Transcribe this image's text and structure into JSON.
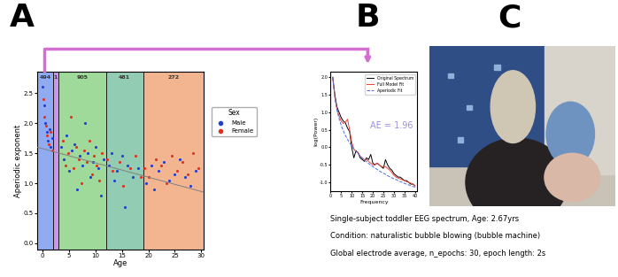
{
  "panel_labels": [
    "A",
    "B",
    "C"
  ],
  "chart_data": [
    {
      "type": "scatter",
      "label": "A",
      "x_label": "Age",
      "y_label": "Aperiodic exponent",
      "xlim": [
        -1,
        30.5
      ],
      "ylim": [
        -0.1,
        2.85
      ],
      "xticks": [
        0,
        5,
        10,
        15,
        20,
        25,
        30
      ],
      "yticks": [
        {
          "value": 0,
          "label": "0.0"
        },
        {
          "value": 0.5,
          "label": "0.5"
        },
        {
          "value": 1.0,
          "label": "1.0"
        },
        {
          "value": 1.5,
          "label": "1.5"
        },
        {
          "value": 2.0,
          "label": "2.0"
        },
        {
          "value": 2.5,
          "label": "2.5"
        }
      ],
      "legend": "right",
      "legend_title": "Sex",
      "bands": [
        {
          "x0": -1,
          "x1": 2,
          "color": "#7d9cf0",
          "label": "494"
        },
        {
          "x0": 2,
          "x1": 3,
          "color": "#c184e8",
          "label": "1"
        },
        {
          "x0": 3,
          "x1": 12,
          "color": "#8fd48a",
          "label": "905"
        },
        {
          "x0": 12,
          "x1": 19,
          "color": "#7fc4a6",
          "label": "481"
        },
        {
          "x0": 19,
          "x1": 30.5,
          "color": "#f0a87c",
          "label": "272"
        }
      ],
      "trend": {
        "x": [
          -1,
          30.5
        ],
        "values": [
          1.6,
          0.85
        ],
        "color": "#808080"
      },
      "series": [
        {
          "name": "Male",
          "color": "#1f3fd6",
          "marker": "circle",
          "x": [
            0.1,
            0.3,
            0.5,
            0.8,
            1.0,
            1.3,
            1.6,
            1.9,
            3.5,
            4,
            4.5,
            5,
            5.5,
            6,
            6.5,
            7,
            7.5,
            8,
            8.5,
            9,
            9.5,
            10,
            10.5,
            11,
            11.5,
            12.5,
            13,
            13.5,
            14,
            15,
            15.5,
            16,
            17,
            18,
            19.5,
            20.5,
            21,
            22,
            23,
            24,
            25,
            26,
            27,
            28,
            29
          ],
          "values": [
            2.6,
            2.3,
            2.0,
            1.85,
            1.7,
            1.9,
            1.6,
            1.75,
            1.6,
            1.4,
            1.8,
            1.2,
            1.55,
            1.65,
            0.9,
            1.45,
            1.3,
            2.0,
            1.5,
            1.1,
            1.35,
            1.6,
            1.25,
            0.8,
            1.4,
            1.3,
            1.5,
            1.05,
            1.2,
            1.45,
            0.6,
            1.3,
            1.1,
            1.25,
            1.0,
            1.3,
            0.9,
            1.2,
            1.35,
            1.05,
            1.15,
            1.4,
            1.1,
            0.95,
            1.2
          ]
        },
        {
          "name": "Female",
          "color": "#e0321e",
          "marker": "circle",
          "x": [
            0.2,
            0.4,
            0.7,
            0.9,
            1.2,
            1.5,
            1.8,
            3.8,
            4.3,
            4.8,
            5.3,
            5.8,
            6.3,
            6.8,
            7.3,
            7.8,
            8.3,
            8.8,
            9.3,
            9.8,
            10.3,
            10.8,
            11.3,
            12.3,
            13.2,
            14.5,
            15.2,
            16.5,
            17.5,
            18.5,
            19.2,
            20,
            21.5,
            22.5,
            23.5,
            24.5,
            25.5,
            26.5,
            27.5,
            28.5,
            29.5
          ],
          "values": [
            2.4,
            2.1,
            1.95,
            1.8,
            1.65,
            1.85,
            1.55,
            1.7,
            1.3,
            1.5,
            2.1,
            1.25,
            1.6,
            1.4,
            1.0,
            1.55,
            1.35,
            1.7,
            1.15,
            1.45,
            1.3,
            1.05,
            1.5,
            1.4,
            1.2,
            1.35,
            0.95,
            1.25,
            1.45,
            1.1,
            1.25,
            1.1,
            1.4,
            1.3,
            1.0,
            1.45,
            1.2,
            1.35,
            1.15,
            1.5,
            1.25
          ]
        }
      ]
    },
    {
      "type": "line",
      "label": "B",
      "x_label": "Frequency",
      "y_label": "log(Power)",
      "xlim": [
        0,
        41
      ],
      "ylim": [
        -1.25,
        2.15
      ],
      "xticks": [
        0,
        5,
        10,
        15,
        20,
        25,
        30,
        35,
        40
      ],
      "yticks": [
        {
          "value": -1.0,
          "label": "-1.0"
        },
        {
          "value": -0.5,
          "label": "-0.5"
        },
        {
          "value": 0.0,
          "label": "0.0"
        },
        {
          "value": 0.5,
          "label": "0.5"
        },
        {
          "value": 1.0,
          "label": "1.0"
        },
        {
          "value": 1.5,
          "label": "1.5"
        },
        {
          "value": 2.0,
          "label": "2.0"
        }
      ],
      "legend": "upper right",
      "annotation": "AE = 1.96",
      "caption": [
        "Single-subject toddler EEG spectrum, Age: 2.67yrs",
        "Condition: naturalistic bubble blowing (bubble machine)",
        "Global electrode average, n_epochs: 30, epoch length: 2s"
      ],
      "x": [
        1,
        2,
        3,
        4,
        5,
        6,
        7,
        8,
        9,
        10,
        11,
        12,
        13,
        14,
        15,
        16,
        17,
        18,
        19,
        20,
        21,
        22,
        23,
        24,
        25,
        26,
        27,
        28,
        29,
        30,
        31,
        32,
        33,
        34,
        35,
        36,
        37,
        38,
        39,
        40
      ],
      "series": [
        {
          "name": "Original Spectrum",
          "color": "#000000",
          "line_style": "solid",
          "values": [
            2.0,
            1.5,
            1.15,
            1.0,
            0.85,
            0.75,
            0.7,
            0.55,
            0.45,
            0.0,
            -0.3,
            -0.1,
            -0.15,
            -0.3,
            -0.35,
            -0.4,
            -0.3,
            -0.35,
            -0.2,
            -0.45,
            -0.5,
            -0.45,
            -0.5,
            -0.55,
            -0.6,
            -0.35,
            -0.5,
            -0.6,
            -0.65,
            -0.75,
            -0.8,
            -0.85,
            -0.85,
            -0.9,
            -0.95,
            -0.95,
            -1.0,
            -1.05,
            -1.05,
            -1.1
          ]
        },
        {
          "name": "Full Model Fit",
          "color": "#e8453c",
          "line_style": "solid",
          "values": [
            2.0,
            1.45,
            1.1,
            0.9,
            0.75,
            0.68,
            0.72,
            0.8,
            0.5,
            0.15,
            -0.05,
            -0.12,
            -0.15,
            -0.25,
            -0.3,
            -0.35,
            -0.35,
            -0.4,
            -0.45,
            -0.5,
            -0.5,
            -0.45,
            -0.5,
            -0.55,
            -0.55,
            -0.55,
            -0.6,
            -0.65,
            -0.72,
            -0.8,
            -0.85,
            -0.88,
            -0.9,
            -0.93,
            -0.95,
            -0.98,
            -1.0,
            -1.02,
            -1.05,
            -1.1
          ]
        },
        {
          "name": "Aperiodic Fit",
          "color": "#4a6fe3",
          "line_style": "dashed",
          "values": [
            2.0,
            1.41,
            1.06,
            0.82,
            0.63,
            0.47,
            0.34,
            0.23,
            0.13,
            0.04,
            -0.04,
            -0.12,
            -0.18,
            -0.25,
            -0.31,
            -0.36,
            -0.41,
            -0.46,
            -0.51,
            -0.55,
            -0.59,
            -0.63,
            -0.67,
            -0.71,
            -0.74,
            -0.77,
            -0.81,
            -0.84,
            -0.87,
            -0.9,
            -0.92,
            -0.95,
            -0.98,
            -1.0,
            -1.03,
            -1.05,
            -1.07,
            -1.1,
            -1.12,
            -1.14
          ]
        }
      ]
    }
  ]
}
